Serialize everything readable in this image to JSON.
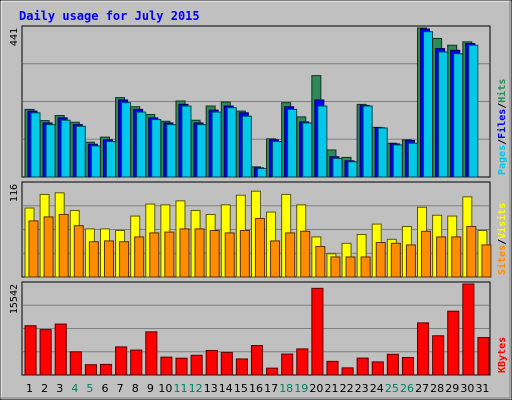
{
  "chart_data": [
    {
      "type": "bar",
      "title": "Daily usage for July 2015",
      "categories": [
        "1",
        "2",
        "3",
        "4",
        "5",
        "6",
        "7",
        "8",
        "9",
        "10",
        "11",
        "12",
        "13",
        "14",
        "15",
        "16",
        "17",
        "18",
        "19",
        "20",
        "21",
        "22",
        "23",
        "24",
        "25",
        "26",
        "27",
        "28",
        "29",
        "30",
        "31"
      ],
      "weekend_categories": [
        "4",
        "5",
        "11",
        "12",
        "18",
        "19",
        "25",
        "26"
      ],
      "ymax_label": "441",
      "ylim": [
        0,
        441
      ],
      "series": [
        {
          "name": "Hits",
          "color": "#2e8b57",
          "values": [
            200,
            167,
            182,
            162,
            103,
            118,
            235,
            208,
            185,
            165,
            225,
            168,
            210,
            222,
            195,
            30,
            113,
            220,
            178,
            300,
            80,
            58,
            215,
            147,
            100,
            110,
            441,
            410,
            390,
            400,
            0
          ]
        },
        {
          "name": "Files",
          "color": "#0000ff",
          "values": [
            195,
            160,
            175,
            155,
            97,
            110,
            228,
            200,
            175,
            160,
            215,
            160,
            198,
            210,
            190,
            27,
            110,
            208,
            163,
            228,
            60,
            48,
            212,
            146,
            98,
            108,
            438,
            380,
            375,
            395,
            0
          ]
        },
        {
          "name": "Pages",
          "color": "#00c8e8",
          "values": [
            190,
            155,
            168,
            150,
            92,
            105,
            220,
            192,
            170,
            155,
            210,
            155,
            192,
            205,
            180,
            25,
            105,
            200,
            160,
            210,
            55,
            45,
            210,
            145,
            95,
            100,
            430,
            370,
            365,
            390,
            0
          ]
        }
      ],
      "legend": [
        "Pages",
        "Files",
        "Hits"
      ],
      "legend_colors": [
        "#00c8e8",
        "#0000ff",
        "#2e8b57"
      ]
    },
    {
      "type": "bar",
      "categories": [
        "1",
        "2",
        "3",
        "4",
        "5",
        "6",
        "7",
        "8",
        "9",
        "10",
        "11",
        "12",
        "13",
        "14",
        "15",
        "16",
        "17",
        "18",
        "19",
        "20",
        "21",
        "22",
        "23",
        "24",
        "25",
        "26",
        "27",
        "28",
        "29",
        "30",
        "31"
      ],
      "ymax_label": "116",
      "ylim": [
        0,
        116
      ],
      "series": [
        {
          "name": "Visits",
          "color": "#ffff00",
          "values": [
            86,
            103,
            105,
            83,
            60,
            60,
            58,
            76,
            91,
            90,
            95,
            83,
            78,
            90,
            102,
            107,
            81,
            103,
            90,
            50,
            29,
            42,
            53,
            66,
            47,
            63,
            87,
            77,
            76,
            100,
            58
          ]
        },
        {
          "name": "Sites",
          "color": "#ff8c00",
          "values": [
            70,
            75,
            78,
            64,
            44,
            45,
            44,
            50,
            55,
            56,
            60,
            60,
            58,
            55,
            58,
            73,
            45,
            55,
            57,
            38,
            25,
            25,
            25,
            43,
            42,
            40,
            57,
            50,
            50,
            63,
            40
          ]
        }
      ],
      "legend": [
        "Sites",
        "Visits"
      ],
      "legend_colors": [
        "#ff8c00",
        "#ffff00"
      ]
    },
    {
      "type": "bar",
      "categories": [
        "1",
        "2",
        "3",
        "4",
        "5",
        "6",
        "7",
        "8",
        "9",
        "10",
        "11",
        "12",
        "13",
        "14",
        "15",
        "16",
        "17",
        "18",
        "19",
        "20",
        "21",
        "22",
        "23",
        "24",
        "25",
        "26",
        "27",
        "28",
        "29",
        "30",
        "31"
      ],
      "ymax_label": "15542",
      "ylim": [
        0,
        15542
      ],
      "series": [
        {
          "name": "KBytes",
          "color": "#ff0000",
          "values": [
            8420,
            7750,
            8700,
            3960,
            1760,
            1810,
            4800,
            4260,
            7370,
            3050,
            2870,
            3370,
            4190,
            3850,
            2740,
            5030,
            1170,
            3580,
            4460,
            14800,
            2330,
            1220,
            2890,
            2240,
            3540,
            2990,
            8900,
            6700,
            10900,
            15542,
            6400
          ]
        }
      ],
      "legend": [
        "KBytes"
      ],
      "legend_colors": [
        "#ff0000"
      ]
    }
  ],
  "colors": {
    "page_bg": "#c0c0c0",
    "panel_bg": "#c0c0c0",
    "title": "#0000ff",
    "weekday_label": "#000000",
    "weekend_label": "#00805f",
    "gridline": "#808080",
    "separator": "#ff0000",
    "frame": "#000000"
  }
}
